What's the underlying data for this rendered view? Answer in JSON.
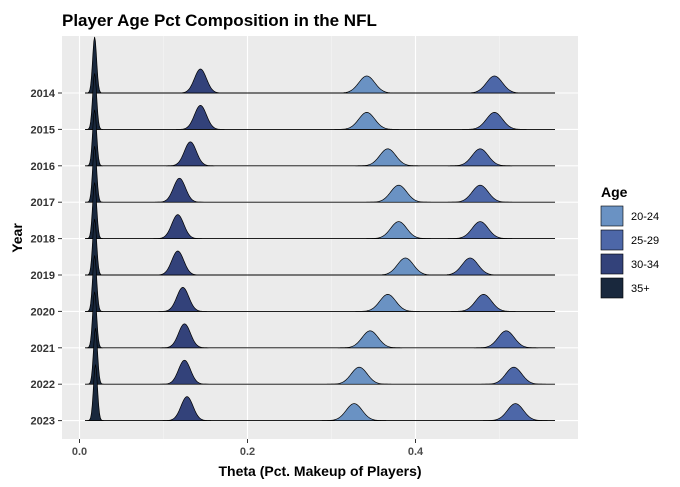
{
  "chart_data": {
    "type": "ridgeline",
    "title": "Player Age Pct Composition in the NFL",
    "xlabel": "Theta (Pct. Makeup of Players)",
    "ylabel": "Year",
    "xlim": [
      -0.02,
      0.58
    ],
    "x_ticks": [
      0.0,
      0.2,
      0.4
    ],
    "x_tick_labels": [
      "0.0",
      "0.2",
      "0.4"
    ],
    "grid": true,
    "legend": {
      "title": "Age",
      "position": "right",
      "entries": [
        "20-24",
        "25-29",
        "30-34",
        "35+"
      ]
    },
    "colors": {
      "20-24": "#6a92c3",
      "25-29": "#4d67a8",
      "30-34": "#33427a",
      "35+": "#19283d"
    },
    "years": [
      "2014",
      "2015",
      "2016",
      "2017",
      "2018",
      "2019",
      "2020",
      "2021",
      "2022",
      "2023"
    ],
    "series": [
      {
        "name": "20-24",
        "values": [
          0.342,
          0.342,
          0.367,
          0.38,
          0.38,
          0.388,
          0.367,
          0.346,
          0.333,
          0.327
        ]
      },
      {
        "name": "25-29",
        "values": [
          0.494,
          0.494,
          0.477,
          0.477,
          0.477,
          0.465,
          0.481,
          0.508,
          0.517,
          0.519
        ]
      },
      {
        "name": "30-34",
        "values": [
          0.144,
          0.144,
          0.132,
          0.119,
          0.117,
          0.117,
          0.123,
          0.125,
          0.125,
          0.128
        ]
      },
      {
        "name": "35+",
        "values": [
          0.018,
          0.018,
          0.018,
          0.018,
          0.018,
          0.018,
          0.018,
          0.018,
          0.019,
          0.019
        ]
      }
    ]
  }
}
